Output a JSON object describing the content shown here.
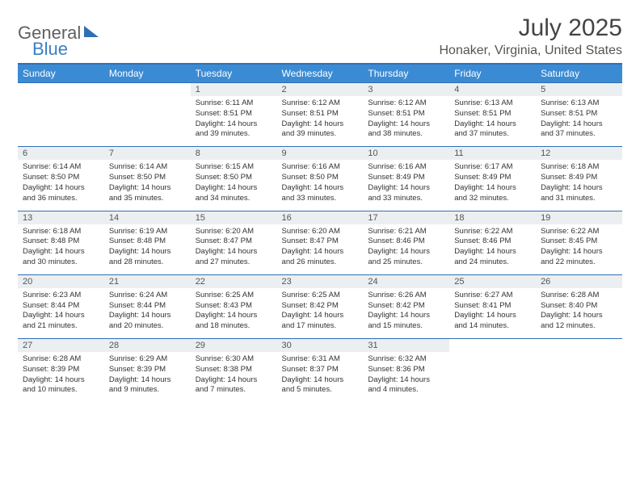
{
  "brand": {
    "part1": "General",
    "part2": "Blue"
  },
  "title": "July 2025",
  "location": "Honaker, Virginia, United States",
  "colors": {
    "header_bg": "#3b8bd4",
    "header_text": "#ffffff",
    "border": "#2f6fb3",
    "daynum_bg": "#eceff2",
    "text": "#333333",
    "title_text": "#444444"
  },
  "weekdays": [
    "Sunday",
    "Monday",
    "Tuesday",
    "Wednesday",
    "Thursday",
    "Friday",
    "Saturday"
  ],
  "weeks": [
    [
      null,
      null,
      {
        "n": "1",
        "sr": "6:11 AM",
        "ss": "8:51 PM",
        "dl": "14 hours and 39 minutes."
      },
      {
        "n": "2",
        "sr": "6:12 AM",
        "ss": "8:51 PM",
        "dl": "14 hours and 39 minutes."
      },
      {
        "n": "3",
        "sr": "6:12 AM",
        "ss": "8:51 PM",
        "dl": "14 hours and 38 minutes."
      },
      {
        "n": "4",
        "sr": "6:13 AM",
        "ss": "8:51 PM",
        "dl": "14 hours and 37 minutes."
      },
      {
        "n": "5",
        "sr": "6:13 AM",
        "ss": "8:51 PM",
        "dl": "14 hours and 37 minutes."
      }
    ],
    [
      {
        "n": "6",
        "sr": "6:14 AM",
        "ss": "8:50 PM",
        "dl": "14 hours and 36 minutes."
      },
      {
        "n": "7",
        "sr": "6:14 AM",
        "ss": "8:50 PM",
        "dl": "14 hours and 35 minutes."
      },
      {
        "n": "8",
        "sr": "6:15 AM",
        "ss": "8:50 PM",
        "dl": "14 hours and 34 minutes."
      },
      {
        "n": "9",
        "sr": "6:16 AM",
        "ss": "8:50 PM",
        "dl": "14 hours and 33 minutes."
      },
      {
        "n": "10",
        "sr": "6:16 AM",
        "ss": "8:49 PM",
        "dl": "14 hours and 33 minutes."
      },
      {
        "n": "11",
        "sr": "6:17 AM",
        "ss": "8:49 PM",
        "dl": "14 hours and 32 minutes."
      },
      {
        "n": "12",
        "sr": "6:18 AM",
        "ss": "8:49 PM",
        "dl": "14 hours and 31 minutes."
      }
    ],
    [
      {
        "n": "13",
        "sr": "6:18 AM",
        "ss": "8:48 PM",
        "dl": "14 hours and 30 minutes."
      },
      {
        "n": "14",
        "sr": "6:19 AM",
        "ss": "8:48 PM",
        "dl": "14 hours and 28 minutes."
      },
      {
        "n": "15",
        "sr": "6:20 AM",
        "ss": "8:47 PM",
        "dl": "14 hours and 27 minutes."
      },
      {
        "n": "16",
        "sr": "6:20 AM",
        "ss": "8:47 PM",
        "dl": "14 hours and 26 minutes."
      },
      {
        "n": "17",
        "sr": "6:21 AM",
        "ss": "8:46 PM",
        "dl": "14 hours and 25 minutes."
      },
      {
        "n": "18",
        "sr": "6:22 AM",
        "ss": "8:46 PM",
        "dl": "14 hours and 24 minutes."
      },
      {
        "n": "19",
        "sr": "6:22 AM",
        "ss": "8:45 PM",
        "dl": "14 hours and 22 minutes."
      }
    ],
    [
      {
        "n": "20",
        "sr": "6:23 AM",
        "ss": "8:44 PM",
        "dl": "14 hours and 21 minutes."
      },
      {
        "n": "21",
        "sr": "6:24 AM",
        "ss": "8:44 PM",
        "dl": "14 hours and 20 minutes."
      },
      {
        "n": "22",
        "sr": "6:25 AM",
        "ss": "8:43 PM",
        "dl": "14 hours and 18 minutes."
      },
      {
        "n": "23",
        "sr": "6:25 AM",
        "ss": "8:42 PM",
        "dl": "14 hours and 17 minutes."
      },
      {
        "n": "24",
        "sr": "6:26 AM",
        "ss": "8:42 PM",
        "dl": "14 hours and 15 minutes."
      },
      {
        "n": "25",
        "sr": "6:27 AM",
        "ss": "8:41 PM",
        "dl": "14 hours and 14 minutes."
      },
      {
        "n": "26",
        "sr": "6:28 AM",
        "ss": "8:40 PM",
        "dl": "14 hours and 12 minutes."
      }
    ],
    [
      {
        "n": "27",
        "sr": "6:28 AM",
        "ss": "8:39 PM",
        "dl": "14 hours and 10 minutes."
      },
      {
        "n": "28",
        "sr": "6:29 AM",
        "ss": "8:39 PM",
        "dl": "14 hours and 9 minutes."
      },
      {
        "n": "29",
        "sr": "6:30 AM",
        "ss": "8:38 PM",
        "dl": "14 hours and 7 minutes."
      },
      {
        "n": "30",
        "sr": "6:31 AM",
        "ss": "8:37 PM",
        "dl": "14 hours and 5 minutes."
      },
      {
        "n": "31",
        "sr": "6:32 AM",
        "ss": "8:36 PM",
        "dl": "14 hours and 4 minutes."
      },
      null,
      null
    ]
  ],
  "labels": {
    "sunrise": "Sunrise:",
    "sunset": "Sunset:",
    "daylight": "Daylight:"
  }
}
